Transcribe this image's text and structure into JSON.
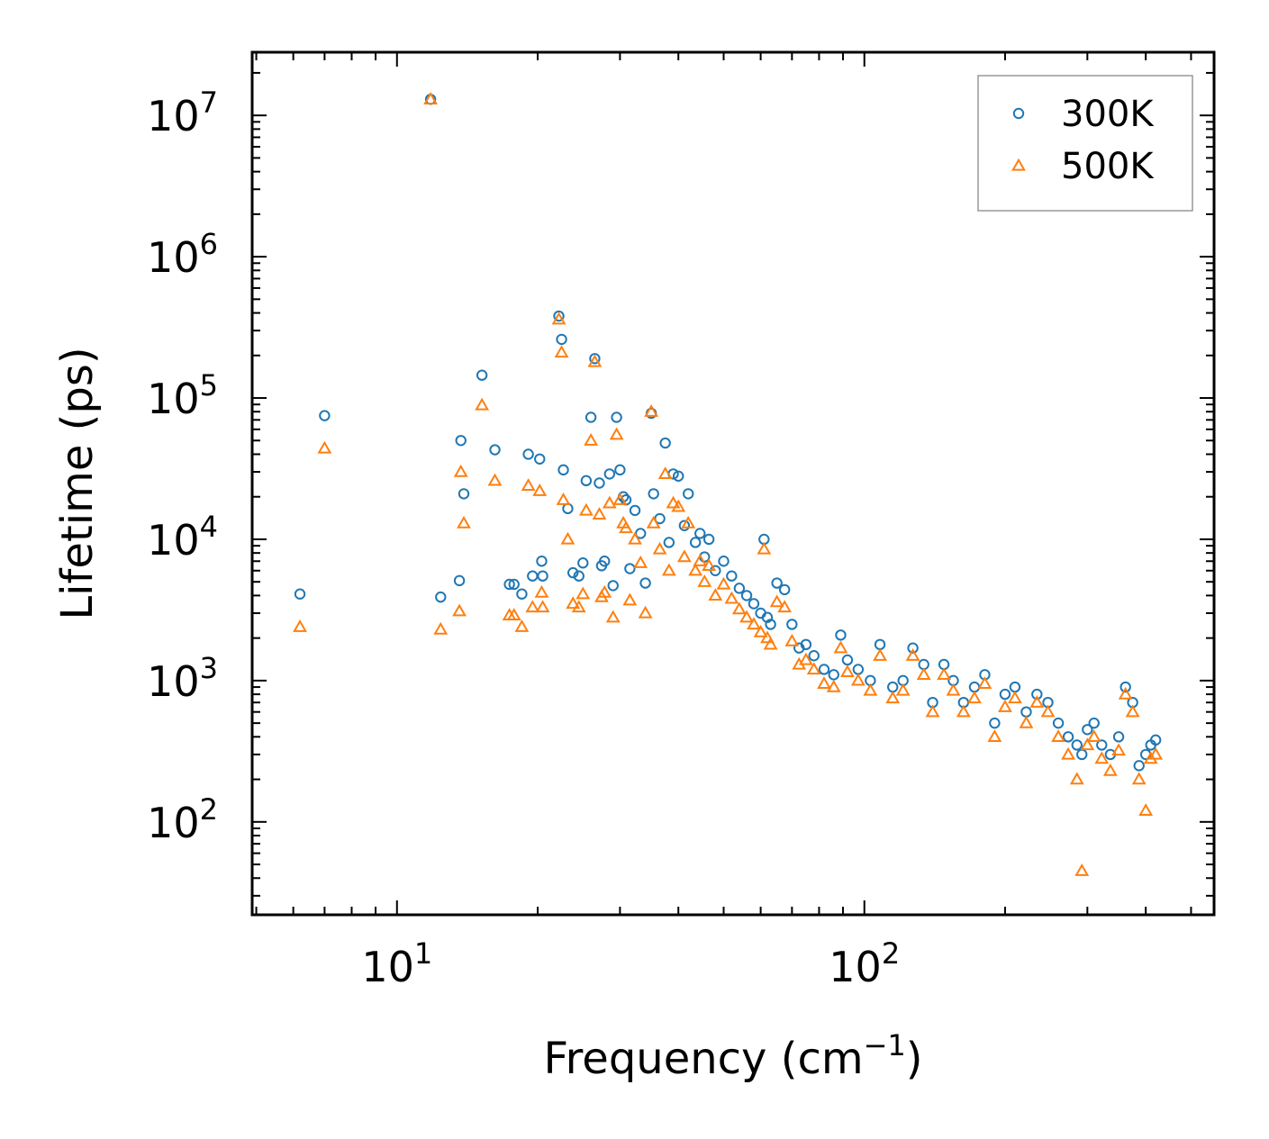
{
  "chart_data": {
    "type": "scatter",
    "title": "",
    "xlabel": "Frequency (cm",
    "xlabel_sup": "−1",
    "xlabel_end": ")",
    "ylabel": "Lifetime (ps)",
    "xscale": "log",
    "yscale": "log",
    "xlim": [
      4.9,
      560
    ],
    "ylim": [
      22,
      28000000
    ],
    "x_ticks": [
      {
        "value": 10,
        "base": "10",
        "exp": "1"
      },
      {
        "value": 100,
        "base": "10",
        "exp": "2"
      }
    ],
    "y_ticks": [
      {
        "value": 100,
        "base": "10",
        "exp": "2"
      },
      {
        "value": 1000,
        "base": "10",
        "exp": "3"
      },
      {
        "value": 10000,
        "base": "10",
        "exp": "4"
      },
      {
        "value": 100000,
        "base": "10",
        "exp": "5"
      },
      {
        "value": 1000000,
        "base": "10",
        "exp": "6"
      },
      {
        "value": 10000000,
        "base": "10",
        "exp": "7"
      }
    ],
    "legend_position": "top-right",
    "series": [
      {
        "name": "300K",
        "color": "#1f77b4",
        "marker": "circle",
        "x": [
          6.2,
          7.0,
          11.8,
          12.4,
          13.6,
          13.7,
          13.9,
          15.2,
          16.2,
          17.4,
          17.8,
          18.5,
          19.1,
          19.5,
          20.2,
          20.4,
          20.5,
          22.2,
          22.5,
          22.7,
          23.2,
          23.8,
          24.5,
          25.0,
          25.4,
          26.0,
          26.5,
          27.1,
          27.4,
          27.8,
          28.5,
          29.0,
          29.5,
          30.0,
          30.5,
          30.9,
          31.5,
          32.3,
          33.2,
          34.0,
          35.0,
          35.4,
          36.5,
          37.5,
          38.2,
          39.0,
          40.0,
          41.2,
          42.0,
          43.5,
          44.5,
          45.5,
          46.5,
          48.0,
          50.0,
          52.0,
          54.0,
          56.0,
          58.0,
          60.0,
          61.0,
          62.0,
          63.0,
          65.0,
          67.5,
          70.0,
          72.5,
          75.0,
          78.0,
          82.0,
          86.0,
          89.0,
          92.0,
          97.0,
          103.0,
          108.0,
          115.0,
          121.0,
          127.0,
          134.0,
          140.0,
          148.0,
          155.0,
          163.0,
          172.0,
          181.0,
          190.0,
          200.0,
          210.0,
          222.0,
          234.0,
          247.0,
          260.0,
          273.0,
          285.0,
          292.0,
          300.0,
          310.0,
          322.0,
          336.0,
          350.0,
          362.0,
          375.0,
          387.0,
          400.0,
          410.0,
          420.0
        ],
        "y": [
          4100,
          75000,
          13000000,
          3900,
          5100,
          50000,
          21000,
          145000,
          43000,
          4800,
          4800,
          4100,
          40000,
          5500,
          37000,
          7000,
          5500,
          380000,
          260000,
          31000,
          16500,
          5800,
          5500,
          6800,
          26000,
          73000,
          190000,
          25000,
          6500,
          7000,
          29000,
          4700,
          73000,
          31000,
          20000,
          19000,
          6200,
          16000,
          11000,
          4900,
          78000,
          21000,
          14000,
          48000,
          9500,
          29000,
          28000,
          12500,
          21000,
          9500,
          11000,
          7500,
          10000,
          6000,
          7000,
          5500,
          4500,
          4000,
          3500,
          3000,
          10000,
          2800,
          2500,
          4900,
          4400,
          2500,
          1700,
          1800,
          1500,
          1200,
          1100,
          2100,
          1400,
          1200,
          1000,
          1800,
          900,
          1000,
          1700,
          1300,
          700,
          1300,
          1000,
          700,
          900,
          1100,
          500,
          800,
          900,
          600,
          800,
          700,
          500,
          400,
          350,
          300,
          450,
          500,
          350,
          300,
          400,
          900,
          700,
          250,
          300,
          350,
          380
        ]
      },
      {
        "name": "500K",
        "color": "#ff7f0e",
        "marker": "triangle",
        "x": [
          6.2,
          7.0,
          11.8,
          12.4,
          13.6,
          13.7,
          13.9,
          15.2,
          16.2,
          17.4,
          17.8,
          18.5,
          19.1,
          19.5,
          20.2,
          20.4,
          20.5,
          22.2,
          22.5,
          22.7,
          23.2,
          23.8,
          24.5,
          25.0,
          25.4,
          26.0,
          26.5,
          27.1,
          27.4,
          27.8,
          28.5,
          29.0,
          29.5,
          30.0,
          30.5,
          30.9,
          31.5,
          32.3,
          33.2,
          34.0,
          35.0,
          35.4,
          36.5,
          37.5,
          38.2,
          39.0,
          40.0,
          41.2,
          42.0,
          43.5,
          44.5,
          45.5,
          46.5,
          48.0,
          50.0,
          52.0,
          54.0,
          56.0,
          58.0,
          60.0,
          61.0,
          62.0,
          63.0,
          65.0,
          67.5,
          70.0,
          72.5,
          75.0,
          78.0,
          82.0,
          86.0,
          89.0,
          92.0,
          97.0,
          103.0,
          108.0,
          115.0,
          121.0,
          127.0,
          134.0,
          140.0,
          148.0,
          155.0,
          163.0,
          172.0,
          181.0,
          190.0,
          200.0,
          210.0,
          222.0,
          234.0,
          247.0,
          260.0,
          273.0,
          285.0,
          292.0,
          300.0,
          310.0,
          322.0,
          336.0,
          350.0,
          362.0,
          375.0,
          387.0,
          400.0,
          410.0,
          420.0
        ],
        "y": [
          2400,
          44000,
          13000000,
          2300,
          3100,
          30000,
          13000,
          89000,
          26000,
          2900,
          2900,
          2400,
          24000,
          3300,
          22000,
          4200,
          3300,
          360000,
          210000,
          19000,
          10000,
          3500,
          3300,
          4100,
          16000,
          50000,
          180000,
          15000,
          3900,
          4200,
          18000,
          2800,
          55000,
          19000,
          13000,
          12000,
          3700,
          10000,
          6800,
          3000,
          80000,
          13000,
          8500,
          29000,
          6000,
          18000,
          17000,
          7500,
          13000,
          6000,
          7000,
          5000,
          6500,
          4000,
          4800,
          3800,
          3200,
          2800,
          2500,
          2200,
          8500,
          2000,
          1800,
          3600,
          3300,
          1900,
          1300,
          1400,
          1200,
          950,
          900,
          1700,
          1150,
          1000,
          850,
          1500,
          750,
          850,
          1500,
          1100,
          600,
          1100,
          850,
          600,
          750,
          950,
          400,
          650,
          750,
          500,
          700,
          600,
          400,
          300,
          200,
          45,
          350,
          400,
          280,
          230,
          320,
          800,
          600,
          200,
          120,
          280,
          300
        ]
      }
    ]
  }
}
